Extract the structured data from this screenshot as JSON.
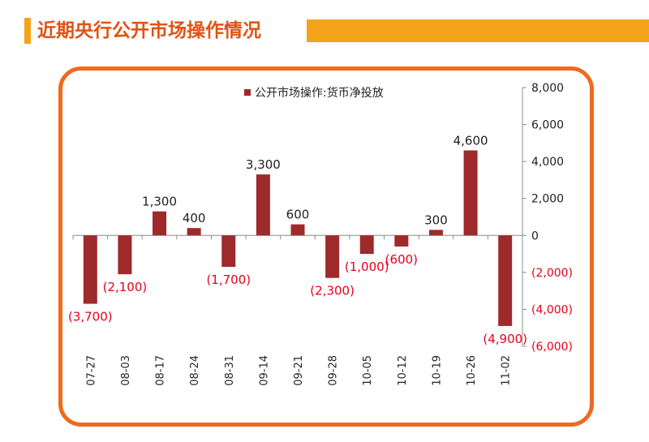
{
  "header": {
    "title": "近期央行公开市场操作情况"
  },
  "colors": {
    "accent": "#f5a31a",
    "title": "#e05314",
    "frame": "#ef6a1e",
    "bar": "#9e2a2b",
    "negative_label": "#e8001c"
  },
  "chart_data": {
    "type": "bar",
    "categories": [
      "07-27",
      "08-03",
      "08-17",
      "08-24",
      "08-31",
      "09-14",
      "09-21",
      "09-28",
      "10-05",
      "10-12",
      "10-19",
      "10-26",
      "11-02"
    ],
    "series": [
      {
        "name": "公开市场操作:货币净投放",
        "values": [
          -3700,
          -2100,
          1300,
          400,
          -1700,
          3300,
          600,
          -2300,
          -1000,
          -600,
          300,
          4600,
          -4900
        ]
      }
    ],
    "data_labels": [
      "(3,700)",
      "(2,100)",
      "1,300",
      "400",
      "(1,700)",
      "3,300",
      "600",
      "(2,300)",
      "(1,000)",
      "(600)",
      "300",
      "4,600",
      "(4,900)"
    ],
    "y_ticks": [
      8000,
      6000,
      4000,
      2000,
      0,
      -2000,
      -4000,
      -6000
    ],
    "y_tick_labels": [
      "8,000",
      "6,000",
      "4,000",
      "2,000",
      "0",
      "(2,000)",
      "(4,000)",
      "(6,000)"
    ],
    "ylim": [
      -6000,
      8000
    ],
    "y_axis_position": "right",
    "legend_position": "top",
    "grid": false,
    "title": "",
    "xlabel": "",
    "ylabel": ""
  }
}
